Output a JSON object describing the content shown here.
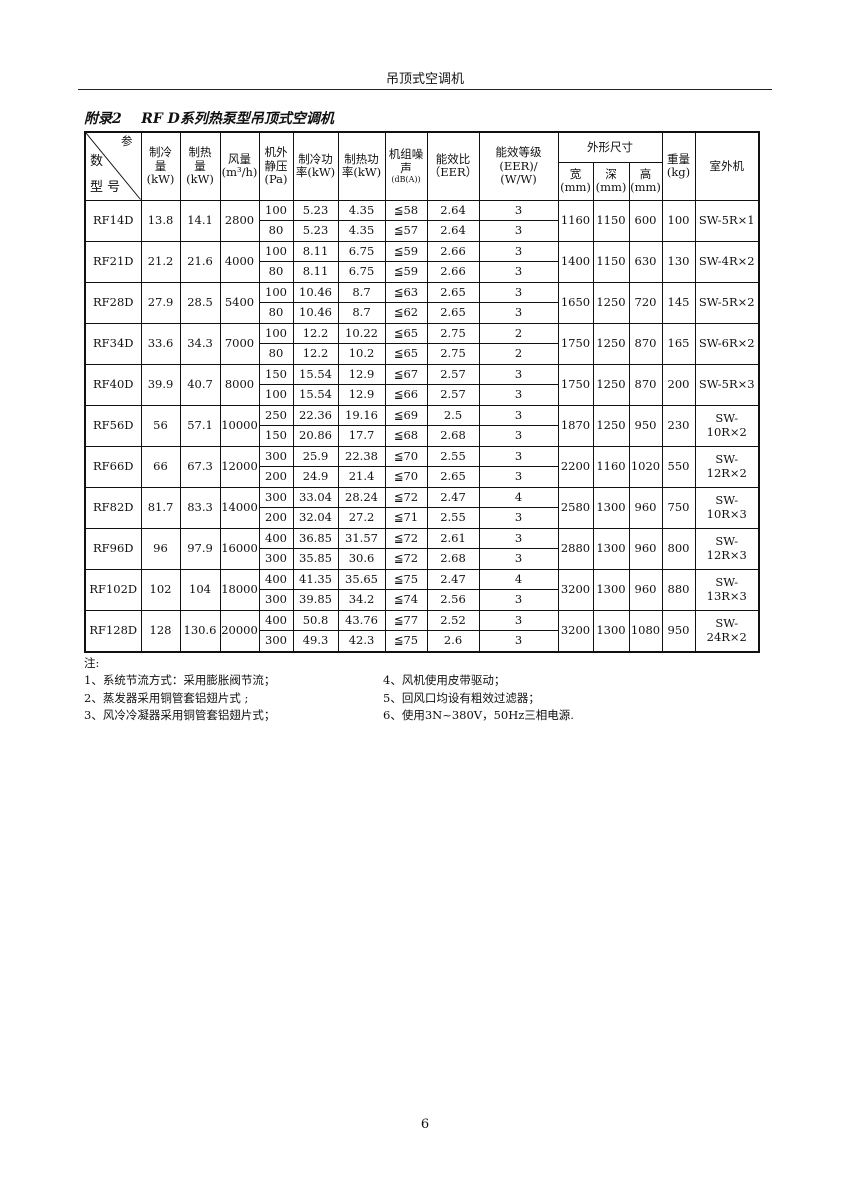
{
  "page_header": "吊顶式空调机",
  "title": "附录2    RF D系列热泵型吊顶式空调机",
  "table": {
    "corner": {
      "top": "参",
      "middle": "数",
      "bottom": "型 号"
    },
    "headers": {
      "cooling": [
        "制冷",
        "量",
        "(kW)"
      ],
      "heating": [
        "制热",
        "量",
        "(kW)"
      ],
      "airflow": [
        "风量",
        "(m³/h)"
      ],
      "pressure": [
        "机外",
        "静压",
        "(Pa)"
      ],
      "cool_power": [
        "制冷功",
        "率(kW)"
      ],
      "heat_power": [
        "制热功",
        "率(kW)"
      ],
      "noise": [
        "机组噪",
        "声",
        "(dB(A))"
      ],
      "eer": [
        "能效比",
        "（EER）"
      ],
      "grade": [
        "能效等级",
        "(EER)/ (W/W)"
      ],
      "dims": "外形尺寸",
      "width": [
        "宽",
        "(mm)"
      ],
      "depth": [
        "深",
        "(mm)"
      ],
      "height": [
        "高",
        "(mm)"
      ],
      "weight": [
        "重量",
        "(kg)"
      ],
      "outdoor": "室外机"
    },
    "models": [
      {
        "model": "RF14D",
        "cool": "13.8",
        "heat": "14.1",
        "air": "2800",
        "w": "1160",
        "d": "1150",
        "h": "600",
        "kg": "100",
        "out": "SW-5R×1",
        "rows": [
          [
            "100",
            "5.23",
            "4.35",
            "≦58",
            "2.64",
            "3"
          ],
          [
            "80",
            "5.23",
            "4.35",
            "≦57",
            "2.64",
            "3"
          ]
        ]
      },
      {
        "model": "RF21D",
        "cool": "21.2",
        "heat": "21.6",
        "air": "4000",
        "w": "1400",
        "d": "1150",
        "h": "630",
        "kg": "130",
        "out": "SW-4R×2",
        "rows": [
          [
            "100",
            "8.11",
            "6.75",
            "≦59",
            "2.66",
            "3"
          ],
          [
            "80",
            "8.11",
            "6.75",
            "≦59",
            "2.66",
            "3"
          ]
        ]
      },
      {
        "model": "RF28D",
        "cool": "27.9",
        "heat": "28.5",
        "air": "5400",
        "w": "1650",
        "d": "1250",
        "h": "720",
        "kg": "145",
        "out": "SW-5R×2",
        "rows": [
          [
            "100",
            "10.46",
            "8.7",
            "≦63",
            "2.65",
            "3"
          ],
          [
            "80",
            "10.46",
            "8.7",
            "≦62",
            "2.65",
            "3"
          ]
        ]
      },
      {
        "model": "RF34D",
        "cool": "33.6",
        "heat": "34.3",
        "air": "7000",
        "w": "1750",
        "d": "1250",
        "h": "870",
        "kg": "165",
        "out": "SW-6R×2",
        "rows": [
          [
            "100",
            "12.2",
            "10.22",
            "≦65",
            "2.75",
            "2"
          ],
          [
            "80",
            "12.2",
            "10.2",
            "≦65",
            "2.75",
            "2"
          ]
        ]
      },
      {
        "model": "RF40D",
        "cool": "39.9",
        "heat": "40.7",
        "air": "8000",
        "w": "1750",
        "d": "1250",
        "h": "870",
        "kg": "200",
        "out": "SW-5R×3",
        "rows": [
          [
            "150",
            "15.54",
            "12.9",
            "≦67",
            "2.57",
            "3"
          ],
          [
            "100",
            "15.54",
            "12.9",
            "≦66",
            "2.57",
            "3"
          ]
        ]
      },
      {
        "model": "RF56D",
        "cool": "56",
        "heat": "57.1",
        "air": "10000",
        "w": "1870",
        "d": "1250",
        "h": "950",
        "kg": "230",
        "out": "SW-10R×2",
        "rows": [
          [
            "250",
            "22.36",
            "19.16",
            "≦69",
            "2.5",
            "3"
          ],
          [
            "150",
            "20.86",
            "17.7",
            "≦68",
            "2.68",
            "3"
          ]
        ]
      },
      {
        "model": "RF66D",
        "cool": "66",
        "heat": "67.3",
        "air": "12000",
        "w": "2200",
        "d": "1160",
        "h": "1020",
        "kg": "550",
        "out": "SW-12R×2",
        "rows": [
          [
            "300",
            "25.9",
            "22.38",
            "≦70",
            "2.55",
            "3"
          ],
          [
            "200",
            "24.9",
            "21.4",
            "≦70",
            "2.65",
            "3"
          ]
        ]
      },
      {
        "model": "RF82D",
        "cool": "81.7",
        "heat": "83.3",
        "air": "14000",
        "w": "2580",
        "d": "1300",
        "h": "960",
        "kg": "750",
        "out": "SW-10R×3",
        "rows": [
          [
            "300",
            "33.04",
            "28.24",
            "≦72",
            "2.47",
            "4"
          ],
          [
            "200",
            "32.04",
            "27.2",
            "≦71",
            "2.55",
            "3"
          ]
        ]
      },
      {
        "model": "RF96D",
        "cool": "96",
        "heat": "97.9",
        "air": "16000",
        "w": "2880",
        "d": "1300",
        "h": "960",
        "kg": "800",
        "out": "SW-12R×3",
        "rows": [
          [
            "400",
            "36.85",
            "31.57",
            "≦72",
            "2.61",
            "3"
          ],
          [
            "300",
            "35.85",
            "30.6",
            "≦72",
            "2.68",
            "3"
          ]
        ]
      },
      {
        "model": "RF102D",
        "cool": "102",
        "heat": "104",
        "air": "18000",
        "w": "3200",
        "d": "1300",
        "h": "960",
        "kg": "880",
        "out": "SW-13R×3",
        "rows": [
          [
            "400",
            "41.35",
            "35.65",
            "≦75",
            "2.47",
            "4"
          ],
          [
            "300",
            "39.85",
            "34.2",
            "≦74",
            "2.56",
            "3"
          ]
        ]
      },
      {
        "model": "RF128D",
        "cool": "128",
        "heat": "130.6",
        "air": "20000",
        "w": "3200",
        "d": "1300",
        "h": "1080",
        "kg": "950",
        "out": "SW-24R×2",
        "rows": [
          [
            "400",
            "50.8",
            "43.76",
            "≦77",
            "2.52",
            "3"
          ],
          [
            "300",
            "49.3",
            "42.3",
            "≦75",
            "2.6",
            "3"
          ]
        ]
      }
    ]
  },
  "notes": {
    "label": "注:",
    "left": [
      "1、系统节流方式：采用膨胀阀节流；",
      "2、蒸发器采用铜管套铝翅片式 ;",
      "3、风冷冷凝器采用铜管套铝翅片式；"
    ],
    "right": [
      "4、风机使用皮带驱动；",
      "5、回风口均设有粗效过滤器；",
      "6、使用3N~380V，50Hz三相电源."
    ]
  },
  "page_number": "6"
}
